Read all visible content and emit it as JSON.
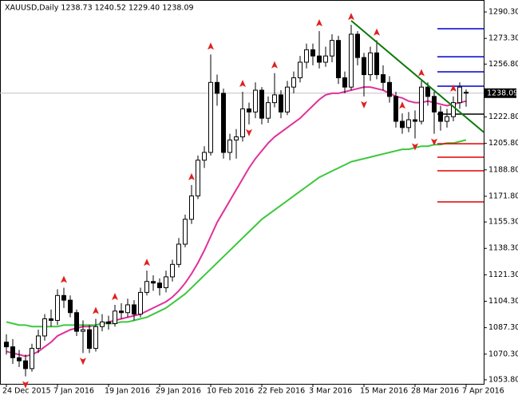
{
  "chart_data": {
    "type": "candlestick",
    "header": "XAUUSD,Daily  1238.73 1240.52 1229.40 1238.09",
    "categories": [
      "24 Dec 2015",
      null,
      null,
      null,
      null,
      null,
      null,
      null,
      "7 Jan 2016",
      null,
      null,
      null,
      null,
      null,
      null,
      null,
      "19 Jan 2016",
      null,
      null,
      null,
      null,
      null,
      null,
      null,
      "29 Jan 2016",
      null,
      null,
      null,
      null,
      null,
      null,
      null,
      "10 Feb 2016",
      null,
      null,
      null,
      null,
      null,
      null,
      null,
      "22 Feb 2016",
      null,
      null,
      null,
      null,
      null,
      null,
      null,
      "3 Mar 2016",
      null,
      null,
      null,
      null,
      null,
      null,
      null,
      "15 Mar 2016",
      null,
      null,
      null,
      null,
      null,
      null,
      null,
      "28 Mar 2016",
      null,
      null,
      null,
      null,
      null,
      null,
      null,
      "7 Apr 2016"
    ],
    "open": [
      1078,
      1075,
      1068,
      1066,
      1061,
      1074,
      1082,
      1093,
      1092,
      1108,
      1105,
      1097,
      1085,
      1086,
      1074,
      1088,
      1091,
      1090,
      1098,
      1097,
      1102,
      1096,
      1110,
      1117,
      1116,
      1113,
      1120,
      1128,
      1141,
      1157,
      1172,
      1195,
      1200,
      1245,
      1238,
      1200,
      1208,
      1210,
      1228,
      1226,
      1240,
      1222,
      1232,
      1237,
      1226,
      1242,
      1248,
      1258,
      1266,
      1262,
      1258,
      1262,
      1272,
      1248,
      1242,
      1276,
      1261,
      1250,
      1264,
      1250,
      1245,
      1236,
      1220,
      1216,
      1221,
      1220,
      1242,
      1236,
      1226,
      1220,
      1223,
      1232,
      1238.73
    ],
    "high": [
      1083,
      1080,
      1073,
      1070,
      1077,
      1086,
      1096,
      1099,
      1112,
      1113,
      1108,
      1099,
      1092,
      1089,
      1093,
      1096,
      1095,
      1102,
      1103,
      1106,
      1105,
      1113,
      1124,
      1121,
      1119,
      1124,
      1131,
      1145,
      1160,
      1179,
      1198,
      1204,
      1263,
      1250,
      1241,
      1212,
      1215,
      1239,
      1232,
      1245,
      1242,
      1236,
      1251,
      1240,
      1246,
      1252,
      1262,
      1270,
      1270,
      1278,
      1268,
      1276,
      1275,
      1252,
      1282,
      1278,
      1264,
      1268,
      1272,
      1256,
      1249,
      1239,
      1225,
      1226,
      1227,
      1246,
      1245,
      1239,
      1230,
      1228,
      1236,
      1245,
      1240.52
    ],
    "low": [
      1070,
      1064,
      1062,
      1056,
      1059,
      1071,
      1079,
      1088,
      1089,
      1100,
      1094,
      1082,
      1071,
      1071,
      1072,
      1085,
      1086,
      1088,
      1093,
      1094,
      1092,
      1094,
      1108,
      1111,
      1108,
      1110,
      1117,
      1126,
      1139,
      1154,
      1170,
      1190,
      1198,
      1230,
      1196,
      1195,
      1196,
      1207,
      1218,
      1222,
      1218,
      1219,
      1229,
      1222,
      1224,
      1238,
      1245,
      1254,
      1256,
      1254,
      1255,
      1258,
      1244,
      1238,
      1240,
      1256,
      1236,
      1246,
      1247,
      1240,
      1232,
      1216,
      1212,
      1213,
      1209,
      1218,
      1230,
      1212,
      1214,
      1216,
      1220,
      1228,
      1229.4
    ],
    "close": [
      1075,
      1068,
      1066,
      1061,
      1074,
      1082,
      1093,
      1092,
      1108,
      1105,
      1097,
      1085,
      1086,
      1074,
      1088,
      1091,
      1090,
      1098,
      1097,
      1102,
      1096,
      1110,
      1117,
      1116,
      1113,
      1120,
      1128,
      1141,
      1157,
      1172,
      1195,
      1200,
      1245,
      1238,
      1200,
      1208,
      1210,
      1228,
      1226,
      1240,
      1222,
      1232,
      1237,
      1226,
      1242,
      1248,
      1258,
      1266,
      1262,
      1258,
      1262,
      1272,
      1248,
      1242,
      1276,
      1261,
      1250,
      1264,
      1250,
      1245,
      1236,
      1220,
      1216,
      1221,
      1220,
      1242,
      1236,
      1226,
      1220,
      1223,
      1232,
      1242,
      1238.09
    ],
    "series": [
      {
        "color": "#e0309a",
        "values": [
          1072,
          1071,
          1070,
          1069,
          1070,
          1072,
          1075,
          1078,
          1082,
          1084,
          1086,
          1087,
          1088,
          1088,
          1089,
          1090,
          1091,
          1092,
          1093,
          1094,
          1095,
          1096,
          1098,
          1100,
          1102,
          1104,
          1107,
          1111,
          1116,
          1122,
          1129,
          1137,
          1146,
          1155,
          1162,
          1169,
          1176,
          1183,
          1190,
          1196,
          1201,
          1206,
          1210,
          1213,
          1216,
          1219,
          1222,
          1226,
          1230,
          1234,
          1237,
          1238,
          1238,
          1239,
          1240,
          1241,
          1242,
          1242,
          1241,
          1240,
          1238,
          1236,
          1235,
          1233,
          1232,
          1232,
          1233,
          1232,
          1231,
          1230,
          1231,
          1232,
          1233
        ]
      },
      {
        "color": "#3cc83c",
        "values": [
          1091,
          1090,
          1089,
          1089,
          1088,
          1088,
          1088,
          1088,
          1088,
          1089,
          1089,
          1089,
          1089,
          1089,
          1089,
          1090,
          1090,
          1090,
          1091,
          1091,
          1092,
          1093,
          1094,
          1096,
          1098,
          1100,
          1103,
          1106,
          1109,
          1113,
          1117,
          1121,
          1125,
          1129,
          1133,
          1137,
          1141,
          1145,
          1149,
          1153,
          1157,
          1160,
          1163,
          1166,
          1169,
          1172,
          1175,
          1178,
          1181,
          1184,
          1186,
          1188,
          1190,
          1192,
          1194,
          1195,
          1196,
          1197,
          1198,
          1199,
          1200,
          1201,
          1202,
          1202,
          1203,
          1204,
          1204,
          1205,
          1205,
          1206,
          1206,
          1207,
          1208
        ]
      }
    ],
    "fractal_color": "#e02020",
    "fractal_up_index": [
      9,
      14,
      17,
      22,
      29,
      32,
      37,
      42,
      49,
      54,
      58,
      62,
      65,
      70
    ],
    "fractal_up_price": [
      1113,
      1093,
      1102,
      1124,
      1179,
      1263,
      1239,
      1251,
      1278,
      1282,
      1272,
      1225,
      1246,
      1236
    ],
    "fractal_down_index": [
      3,
      12,
      38,
      56,
      64,
      67
    ],
    "fractal_down_price": [
      1056,
      1071,
      1218,
      1236,
      1209,
      1212
    ],
    "trendline": {
      "color": "#0a7a0a",
      "index": [
        54,
        72
      ],
      "price": [
        1284.7,
        1222.5
      ]
    },
    "levels_blue": [
      1279.5,
      1261.5,
      1251.8,
      1242.6
    ],
    "levels_blue_color": "#0000cc",
    "levels_red": [
      1205.6,
      1196.9,
      1188.2,
      1168.2
    ],
    "levels_red_color": "#e00000",
    "level_grey": 1224.6,
    "level_grey_color": "#404040",
    "last_price": 1238.09,
    "ylim": [
      1051.2,
      1298.0
    ],
    "yticks": [
      {
        "value": 1290.3,
        "label": "1290.30"
      },
      {
        "value": 1273.3,
        "label": "1273.30"
      },
      {
        "value": 1256.8,
        "label": "1256.80"
      },
      {
        "value": 1222.8,
        "label": "1222.80"
      },
      {
        "value": 1205.8,
        "label": "1205.80"
      },
      {
        "value": 1188.8,
        "label": "1188.80"
      },
      {
        "value": 1171.8,
        "label": "1171.80"
      },
      {
        "value": 1155.3,
        "label": "1155.30"
      },
      {
        "value": 1138.3,
        "label": "1138.30"
      },
      {
        "value": 1121.3,
        "label": "1121.30"
      },
      {
        "value": 1104.3,
        "label": "1104.30"
      },
      {
        "value": 1087.3,
        "label": "1087.30"
      },
      {
        "value": 1070.3,
        "label": "1070.30"
      },
      {
        "value": 1053.8,
        "label": "1053.80"
      }
    ]
  }
}
